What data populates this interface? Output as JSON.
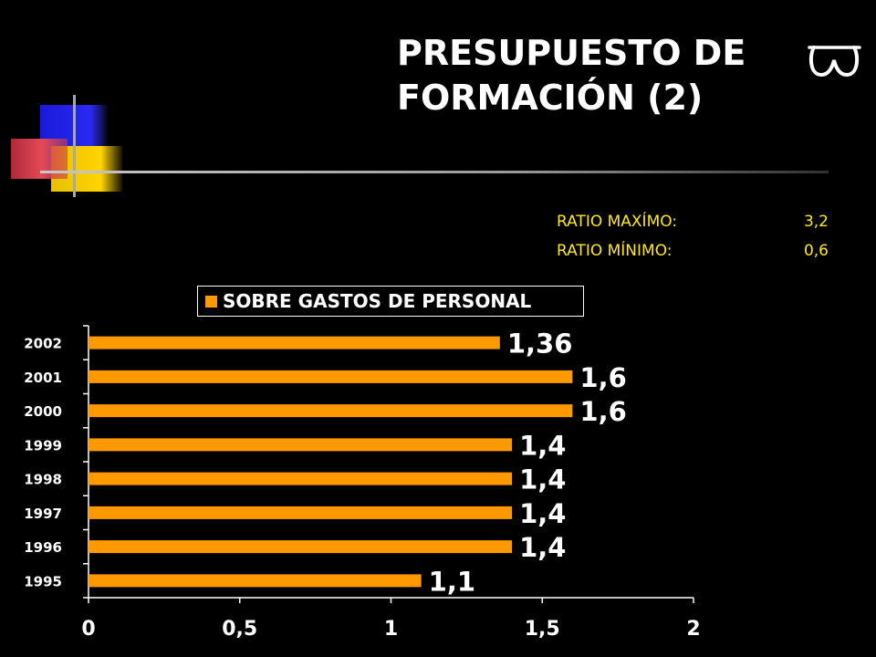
{
  "title": {
    "line1": "PRESUPUESTO DE",
    "line2": "FORMACIÓN (2)"
  },
  "logo_icon": "omega-symbol-icon",
  "ratios": [
    {
      "label": "RATIO MAXÍMO:",
      "value": "3,2"
    },
    {
      "label": "RATIO MÍNIMO:",
      "value": "0,6"
    }
  ],
  "colors": {
    "bar": "#ff9900",
    "ratio_text": "#ffe81a",
    "background": "#000000"
  },
  "chart_data": {
    "type": "bar",
    "orientation": "horizontal",
    "categories": [
      "2002",
      "2001",
      "2000",
      "1999",
      "1998",
      "1997",
      "1996",
      "1995"
    ],
    "series": [
      {
        "name": "SOBRE GASTOS DE PERSONAL",
        "values": [
          1.36,
          1.6,
          1.6,
          1.4,
          1.4,
          1.4,
          1.4,
          1.1
        ],
        "labels": [
          "1,36",
          "1,6",
          "1,6",
          "1,4",
          "1,4",
          "1,4",
          "1,4",
          "1,1"
        ]
      }
    ],
    "xlim": [
      0,
      2
    ],
    "xticks": [
      0,
      0.5,
      1,
      1.5,
      2
    ],
    "xtick_labels": [
      "0",
      "0,5",
      "1",
      "1,5",
      "2"
    ],
    "grid": false,
    "legend_position": "top"
  }
}
